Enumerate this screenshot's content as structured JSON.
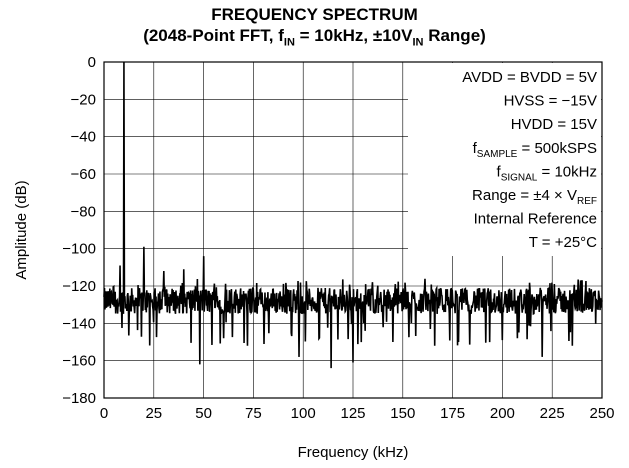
{
  "chart_data": {
    "type": "line",
    "title": "FREQUENCY SPECTRUM",
    "subtitle_parts": {
      "prefix": "(2048-Point FFT, f",
      "sub1": "IN",
      "middle": " = 10kHz, ±10V",
      "sub2": "IN",
      "suffix": " Range)"
    },
    "xlabel": "Frequency (kHz)",
    "ylabel": "Amplitude (dB)",
    "xlim": [
      0,
      250
    ],
    "ylim": [
      -180,
      0
    ],
    "xticks": [
      "0",
      "25",
      "50",
      "75",
      "100",
      "125",
      "150",
      "175",
      "200",
      "225",
      "250"
    ],
    "yticks": [
      "0",
      "−20",
      "−40",
      "−60",
      "−80",
      "−100",
      "−120",
      "−140",
      "−160",
      "−180"
    ],
    "grid": true,
    "noise_floor_db": -128,
    "peaks": [
      {
        "x": 10,
        "y": 0
      },
      {
        "x": 20,
        "y": -99
      },
      {
        "x": 50,
        "y": -104
      },
      {
        "x": 30,
        "y": -112
      },
      {
        "x": 40,
        "y": -111
      },
      {
        "x": 8,
        "y": -109
      }
    ],
    "dips": [
      {
        "x": 48,
        "y": -162
      },
      {
        "x": 114,
        "y": -164
      },
      {
        "x": 125,
        "y": -161
      },
      {
        "x": 98,
        "y": -158
      },
      {
        "x": 220,
        "y": -158
      },
      {
        "x": 72,
        "y": -152
      },
      {
        "x": 166,
        "y": -152
      },
      {
        "x": 178,
        "y": -150
      },
      {
        "x": 235,
        "y": -152
      },
      {
        "x": 145,
        "y": -150
      },
      {
        "x": 60,
        "y": -148
      },
      {
        "x": 200,
        "y": -149
      },
      {
        "x": 10,
        "y": -140
      }
    ],
    "annotations": [
      {
        "plain": "AVDD = BVDD = 5V"
      },
      {
        "plain": "HVSS = −15V"
      },
      {
        "plain": "HVDD = 15V"
      },
      {
        "pre": "f",
        "sub": "SAMPLE",
        "post": " = 500kSPS"
      },
      {
        "pre": "f",
        "sub": "SIGNAL",
        "post": " = 10kHz"
      },
      {
        "pre": "Range = ±4 × V",
        "sub": "REF",
        "post": ""
      },
      {
        "plain": "Internal Reference"
      },
      {
        "plain": "T = +25°C"
      }
    ]
  }
}
